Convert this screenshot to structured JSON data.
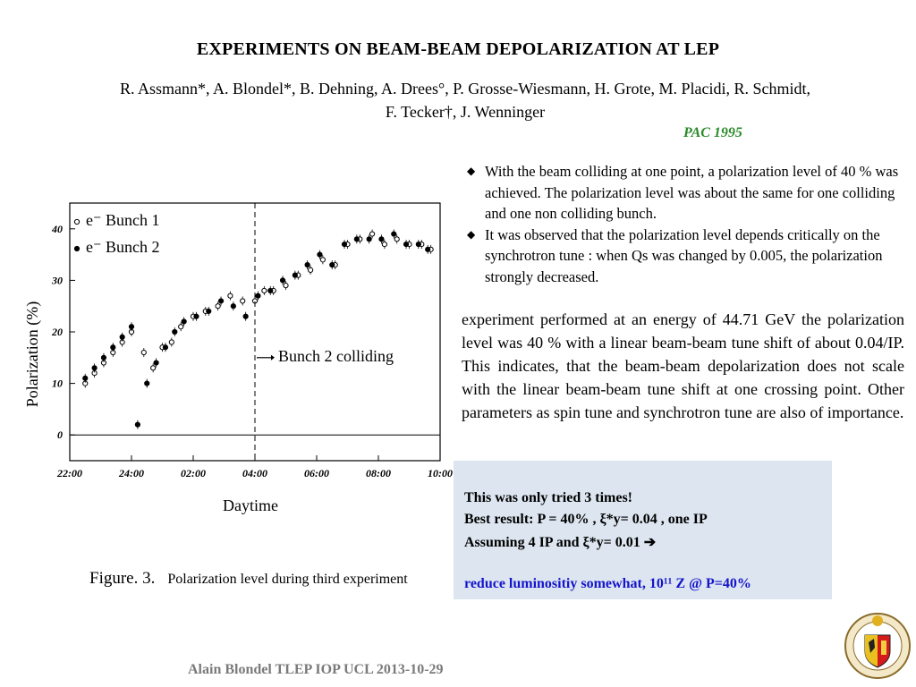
{
  "title": "EXPERIMENTS ON BEAM-BEAM DEPOLARIZATION AT LEP",
  "authors_line1": "R. Assmann*, A. Blondel*, B. Dehning, A. Drees°, P. Grosse-Wiesmann, H. Grote, M. Placidi, R. Schmidt,",
  "authors_line2": "F. Tecker†, J. Wenninger",
  "pac_tag": "PAC 1995",
  "bullets": [
    "With the beam colliding at one point, a polarization level of 40 % was achieved.  The polarization level was about the same for one colliding and one non colliding bunch.",
    "It was observed that the polarization level depends critically on the synchrotron tune : when Qs was changed by 0.005, the polarization strongly decreased."
  ],
  "paragraph": "experiment performed at an energy of 44.71 GeV the polarization level was 40 % with a linear beam-beam tune shift of about 0.04/IP. This indicates, that the beam-beam depolarization does not scale with the linear beam-beam tune shift at one crossing point.  Other parameters as spin tune and synchrotron tune are also of importance.",
  "box": {
    "line1": "This was only tried 3 times!",
    "line2": "Best result: P = 40%  , ξ*y= 0.04  , one IP",
    "line3": "Assuming 4 IP and ξ*y= 0.01 ➔",
    "line4": "reduce luminositiy somewhat, 10¹¹ Z @ P=40%",
    "background": "#dde6f0",
    "highlight_color": "#1414cc"
  },
  "figure_caption": {
    "label": "Figure. 3.",
    "text": "Polarization level during third experiment"
  },
  "footer": "Alain Blondel TLEP  IOP UCL 2013-10-29",
  "logo": {
    "icon": "university-geneva-seal-icon"
  },
  "chart_data": {
    "type": "scatter",
    "xlabel": "Daytime",
    "ylabel": "Polarization (%)",
    "x_ticks": [
      "22:00",
      "24:00",
      "02:00",
      "04:00",
      "06:00",
      "08:00",
      "10:00"
    ],
    "y_ticks": [
      0,
      10,
      20,
      30,
      40
    ],
    "xlim": [
      22,
      34
    ],
    "ylim": [
      -5,
      45
    ],
    "legend": [
      "e⁻ Bunch 1",
      "e⁻ Bunch 2"
    ],
    "legend_position": "top-left",
    "annotation": "Bunch 2 colliding",
    "annotation_x": 28.0,
    "series": [
      {
        "name": "e⁻ Bunch 1",
        "marker": "open-circle",
        "x": [
          22.5,
          22.8,
          23.1,
          23.4,
          23.7,
          24.0,
          24.4,
          24.7,
          25.0,
          25.3,
          25.6,
          26.0,
          26.4,
          26.8,
          27.2,
          27.6,
          28.0,
          28.3,
          28.6,
          29.0,
          29.4,
          29.8,
          30.2,
          30.6,
          31.0,
          31.4,
          31.8,
          32.2,
          32.6,
          33.0,
          33.4,
          33.7
        ],
        "y": [
          10,
          12,
          14,
          16,
          18,
          20,
          16,
          13,
          17,
          18,
          21,
          23,
          24,
          25,
          27,
          26,
          26,
          28,
          28,
          29,
          31,
          32,
          34,
          33,
          37,
          38,
          39,
          37,
          38,
          37,
          37,
          36
        ]
      },
      {
        "name": "e⁻ Bunch 2",
        "marker": "filled-circle",
        "x": [
          22.5,
          22.8,
          23.1,
          23.4,
          23.7,
          24.0,
          24.2,
          24.5,
          24.8,
          25.1,
          25.4,
          25.7,
          26.1,
          26.5,
          26.9,
          27.3,
          27.7,
          28.1,
          28.5,
          28.9,
          29.3,
          29.7,
          30.1,
          30.5,
          30.9,
          31.3,
          31.7,
          32.1,
          32.5,
          32.9,
          33.3,
          33.6
        ],
        "y": [
          11,
          13,
          15,
          17,
          19,
          21,
          2,
          10,
          14,
          17,
          20,
          22,
          23,
          24,
          26,
          25,
          23,
          27,
          28,
          30,
          31,
          33,
          35,
          33,
          37,
          38,
          38,
          38,
          39,
          37,
          37,
          36
        ]
      }
    ]
  }
}
